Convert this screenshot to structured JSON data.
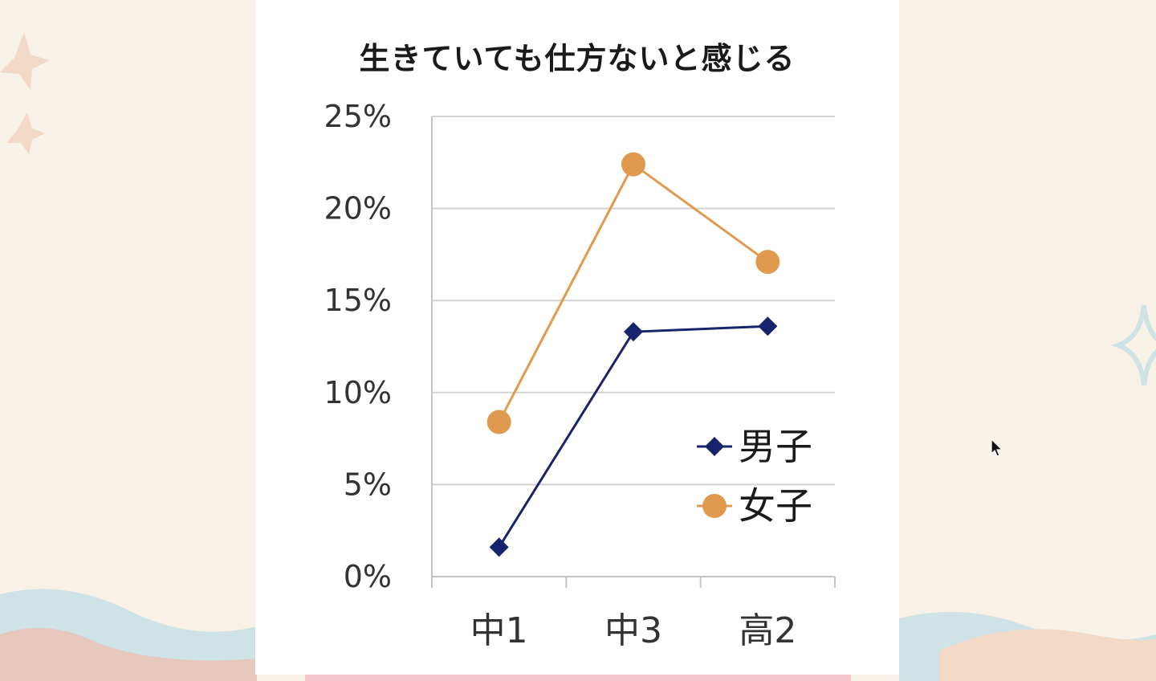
{
  "chart_data": {
    "type": "line",
    "title": "生きていても仕方ないと感じる",
    "categories": [
      "中1",
      "中3",
      "高2"
    ],
    "series": [
      {
        "name": "男子",
        "values": [
          1.6,
          13.3,
          13.6
        ],
        "color": "#17246b",
        "marker": "diamond"
      },
      {
        "name": "女子",
        "values": [
          8.4,
          22.4,
          17.1
        ],
        "color": "#e09a4f",
        "marker": "circle"
      }
    ],
    "ylim": [
      0,
      25
    ],
    "yticks": [
      "0%",
      "5%",
      "10%",
      "15%",
      "20%",
      "25%"
    ],
    "grid": true,
    "legend_placement": "lower-right"
  }
}
